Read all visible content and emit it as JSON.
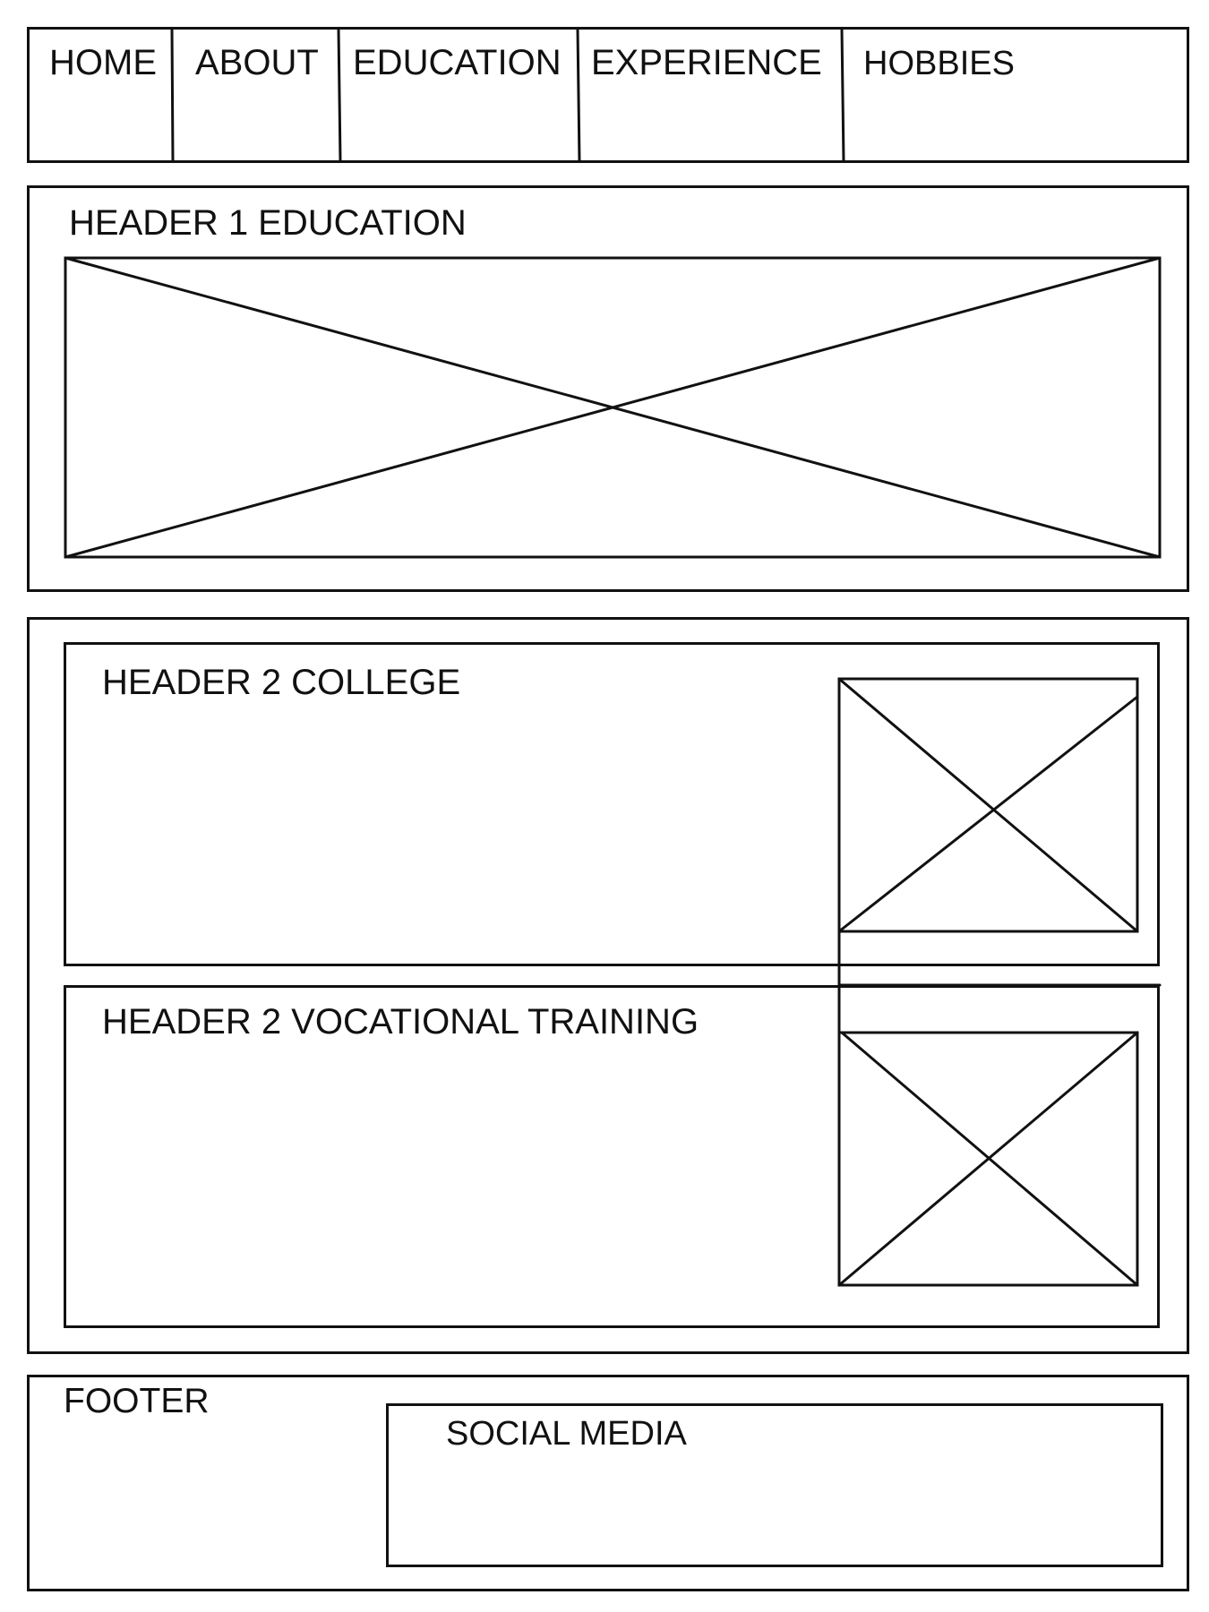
{
  "nav": {
    "items": [
      {
        "label": "HOME"
      },
      {
        "label": "ABOUT"
      },
      {
        "label": "EDUCATION"
      },
      {
        "label": "EXPERIENCE"
      },
      {
        "label": "HOBBIES"
      }
    ]
  },
  "hero": {
    "header": "HEADER 1 EDUCATION"
  },
  "sections": [
    {
      "header": "HEADER 2 COLLEGE"
    },
    {
      "header": "HEADER 2 VOCATIONAL TRAINING"
    }
  ],
  "footer": {
    "label": "FOOTER",
    "social_label": "SOCIAL MEDIA"
  },
  "colors": {
    "stroke": "#111111",
    "background": "#ffffff"
  }
}
